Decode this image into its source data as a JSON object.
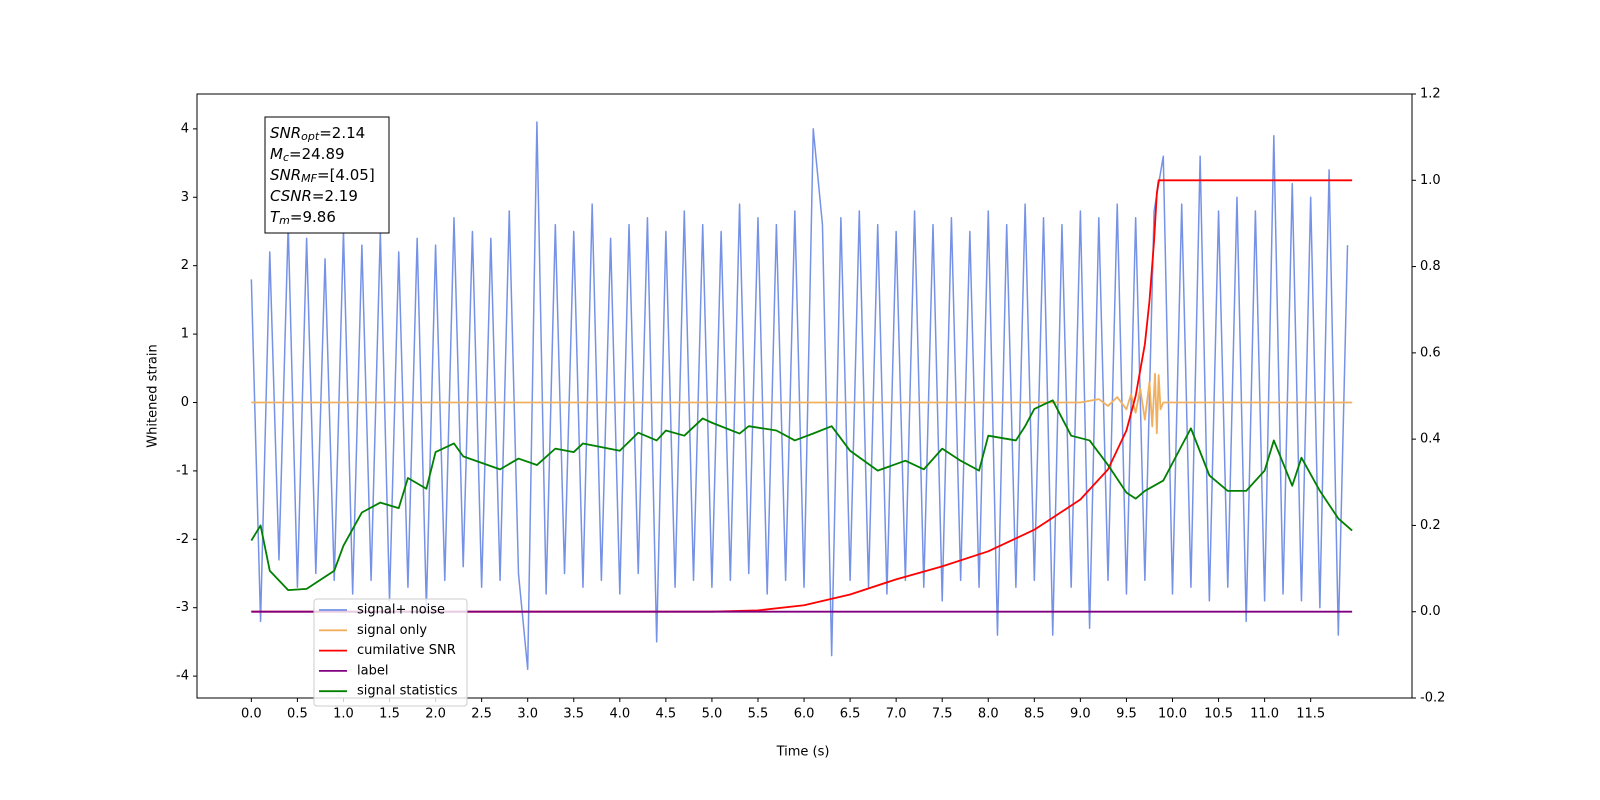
{
  "chart_data": {
    "type": "line",
    "xlabel": "Time (s)",
    "ylabel": "Whitened strain",
    "xlim": [
      -0.59,
      12.6
    ],
    "ylim": [
      -4.32,
      4.51
    ],
    "y2lim": [
      -0.2,
      1.2
    ],
    "xticks": [
      {
        "value": 0,
        "label": "0.0"
      },
      {
        "value": 0.5,
        "label": "0.5"
      },
      {
        "value": 1,
        "label": "1.0"
      },
      {
        "value": 1.5,
        "label": "1.5"
      },
      {
        "value": 2,
        "label": "2.0"
      },
      {
        "value": 2.5,
        "label": "2.5"
      },
      {
        "value": 3,
        "label": "3.0"
      },
      {
        "value": 3.5,
        "label": "3.5"
      },
      {
        "value": 4,
        "label": "4.0"
      },
      {
        "value": 4.5,
        "label": "4.5"
      },
      {
        "value": 5,
        "label": "5.0"
      },
      {
        "value": 5.5,
        "label": "5.5"
      },
      {
        "value": 6,
        "label": "6.0"
      },
      {
        "value": 6.5,
        "label": "6.5"
      },
      {
        "value": 7,
        "label": "7.0"
      },
      {
        "value": 7.5,
        "label": "7.5"
      },
      {
        "value": 8,
        "label": "8.0"
      },
      {
        "value": 8.5,
        "label": "8.5"
      },
      {
        "value": 9,
        "label": "9.0"
      },
      {
        "value": 9.5,
        "label": "9.5"
      },
      {
        "value": 10,
        "label": "10.0"
      },
      {
        "value": 10.5,
        "label": "10.5"
      },
      {
        "value": 11,
        "label": "11.0"
      },
      {
        "value": 11.5,
        "label": "11.5"
      }
    ],
    "yticks": [
      -4,
      -3,
      -2,
      -1,
      0,
      1,
      2,
      3,
      4
    ],
    "y2ticks": [
      -0.2,
      {
        "value": 0,
        "label": "0.0"
      },
      0.2,
      0.4,
      0.6,
      0.8,
      {
        "value": 1,
        "label": "1.0"
      },
      1.2
    ],
    "legend": "lower left",
    "annotations": [
      {
        "var": "SNR",
        "sub": "opt",
        "text": "=2.14"
      },
      {
        "var": "M",
        "sub": "c",
        "text": "=24.89"
      },
      {
        "var": "SNR",
        "sub": "MF",
        "text": "=[4.05]"
      },
      {
        "var": "CSNR",
        "text": "=2.19"
      },
      {
        "var": "T",
        "sub": "m",
        "text": "=9.86"
      }
    ],
    "series": [
      {
        "name": "signal+ noise",
        "color": "#7692e6",
        "x": [
          0.0,
          0.1,
          0.2,
          0.3,
          0.4,
          0.5,
          0.6,
          0.7,
          0.8,
          0.9,
          1.0,
          1.1,
          1.2,
          1.3,
          1.4,
          1.5,
          1.6,
          1.7,
          1.8,
          1.9,
          2.0,
          2.1,
          2.2,
          2.3,
          2.4,
          2.5,
          2.6,
          2.7,
          2.8,
          2.9,
          3.0,
          3.1,
          3.2,
          3.3,
          3.4,
          3.5,
          3.6,
          3.7,
          3.8,
          3.9,
          4.0,
          4.1,
          4.2,
          4.3,
          4.4,
          4.5,
          4.6,
          4.7,
          4.8,
          4.9,
          5.0,
          5.1,
          5.2,
          5.3,
          5.4,
          5.5,
          5.6,
          5.7,
          5.8,
          5.9,
          6.0,
          6.1,
          6.2,
          6.3,
          6.4,
          6.5,
          6.6,
          6.7,
          6.8,
          6.9,
          7.0,
          7.1,
          7.2,
          7.3,
          7.4,
          7.5,
          7.6,
          7.7,
          7.8,
          7.9,
          8.0,
          8.1,
          8.2,
          8.3,
          8.4,
          8.5,
          8.6,
          8.7,
          8.8,
          8.9,
          9.0,
          9.1,
          9.2,
          9.3,
          9.4,
          9.5,
          9.6,
          9.7,
          9.8,
          9.9,
          10.0,
          10.1,
          10.2,
          10.3,
          10.4,
          10.5,
          10.6,
          10.7,
          10.8,
          10.9,
          11.0,
          11.1,
          11.2,
          11.3,
          11.4,
          11.5,
          11.6,
          11.7,
          11.8,
          11.9
        ],
        "values": [
          1.8,
          -3.2,
          2.2,
          -2.3,
          2.6,
          -2.7,
          2.4,
          -2.5,
          2.1,
          -2.6,
          2.5,
          -2.8,
          2.3,
          -2.6,
          2.5,
          -2.9,
          2.2,
          -2.7,
          2.4,
          -3.0,
          2.3,
          -2.6,
          2.7,
          -2.4,
          2.5,
          -2.7,
          2.4,
          -2.6,
          2.8,
          -2.5,
          -3.9,
          4.1,
          -2.8,
          2.6,
          -2.5,
          2.5,
          -2.7,
          2.9,
          -2.6,
          2.4,
          -2.8,
          2.6,
          -2.5,
          2.7,
          -3.5,
          2.5,
          -2.7,
          2.8,
          -2.6,
          2.6,
          -2.7,
          2.5,
          -2.6,
          2.9,
          -2.5,
          2.7,
          -2.8,
          2.6,
          -2.6,
          2.8,
          -2.7,
          4.0,
          2.6,
          -3.7,
          2.7,
          -2.6,
          2.8,
          -2.7,
          2.6,
          -2.8,
          2.5,
          -2.6,
          2.8,
          -2.7,
          2.6,
          -2.9,
          2.7,
          -2.6,
          2.5,
          -2.7,
          2.8,
          -3.4,
          2.6,
          -2.7,
          2.9,
          -2.6,
          2.7,
          -3.4,
          2.6,
          -2.7,
          2.8,
          -3.3,
          2.7,
          -2.6,
          2.9,
          -2.8,
          2.7,
          -2.6,
          2.8,
          3.6,
          -2.8,
          2.9,
          -2.7,
          3.6,
          -2.9,
          2.8,
          -2.7,
          3.0,
          -3.2,
          2.8,
          -2.9,
          3.9,
          -2.8,
          3.2,
          -2.9,
          3.0,
          -3.0,
          3.4,
          -3.4,
          2.3
        ]
      },
      {
        "name": "signal only",
        "color": "#f0b060",
        "x": [
          0,
          9.0,
          9.2,
          9.3,
          9.4,
          9.5,
          9.55,
          9.6,
          9.65,
          9.7,
          9.75,
          9.78,
          9.81,
          9.83,
          9.85,
          9.87,
          9.9,
          11.95
        ],
        "values": [
          0,
          0,
          0.05,
          -0.05,
          0.08,
          -0.1,
          0.12,
          -0.15,
          0.2,
          -0.25,
          0.3,
          -0.35,
          0.42,
          -0.45,
          0.4,
          -0.1,
          0,
          0
        ]
      },
      {
        "name": "cumilative SNR",
        "color": "#ff0000",
        "axis": "y2",
        "x": [
          0,
          5.0,
          5.5,
          6.0,
          6.5,
          7.0,
          7.5,
          8.0,
          8.5,
          9.0,
          9.3,
          9.5,
          9.6,
          9.7,
          9.75,
          9.8,
          9.83,
          9.85,
          11.95
        ],
        "values": [
          0,
          0,
          0.003,
          0.015,
          0.04,
          0.075,
          0.105,
          0.14,
          0.19,
          0.26,
          0.33,
          0.42,
          0.5,
          0.62,
          0.72,
          0.86,
          0.97,
          1.0,
          1.0
        ]
      },
      {
        "name": "label",
        "color": "#800080",
        "axis": "y2",
        "x": [
          0,
          11.95
        ],
        "values": [
          0,
          0
        ]
      },
      {
        "name": "signal statistics",
        "color": "#008000",
        "axis": "y2",
        "x": [
          0,
          0.1,
          0.2,
          0.4,
          0.6,
          0.9,
          1.0,
          1.2,
          1.4,
          1.6,
          1.7,
          1.9,
          2.0,
          2.2,
          2.3,
          2.5,
          2.7,
          2.9,
          3.1,
          3.3,
          3.5,
          3.6,
          4.0,
          4.2,
          4.4,
          4.5,
          4.7,
          4.9,
          5.0,
          5.3,
          5.4,
          5.7,
          5.9,
          6.1,
          6.3,
          6.5,
          6.8,
          7.1,
          7.3,
          7.5,
          7.7,
          7.9,
          8.0,
          8.3,
          8.4,
          8.5,
          8.7,
          8.9,
          9.1,
          9.3,
          9.5,
          9.6,
          9.7,
          9.9,
          10.1,
          10.2,
          10.4,
          10.6,
          10.8,
          11.0,
          11.1,
          11.3,
          11.4,
          11.6,
          11.8,
          11.95
        ],
        "values": [
          0.165,
          0.2,
          0.095,
          0.05,
          0.053,
          0.095,
          0.153,
          0.23,
          0.253,
          0.24,
          0.31,
          0.285,
          0.37,
          0.39,
          0.36,
          0.345,
          0.33,
          0.355,
          0.34,
          0.378,
          0.37,
          0.39,
          0.373,
          0.415,
          0.397,
          0.42,
          0.408,
          0.448,
          0.438,
          0.413,
          0.43,
          0.42,
          0.397,
          0.413,
          0.43,
          0.373,
          0.327,
          0.35,
          0.33,
          0.378,
          0.35,
          0.327,
          0.408,
          0.397,
          0.43,
          0.47,
          0.49,
          0.408,
          0.397,
          0.34,
          0.276,
          0.262,
          0.28,
          0.304,
          0.385,
          0.425,
          0.316,
          0.28,
          0.28,
          0.327,
          0.397,
          0.292,
          0.357,
          0.28,
          0.216,
          0.188
        ]
      }
    ]
  }
}
